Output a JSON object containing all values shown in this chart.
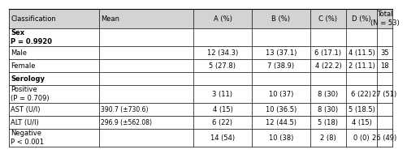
{
  "col_labels": [
    "Classification",
    "Mean",
    "A (%)",
    "B (%)",
    "C (%)",
    "D (%)",
    "Total\n(N = 53)"
  ],
  "rows": [
    {
      "label": "Sex\nP = 0.9920",
      "bold_label": true,
      "mean": "",
      "A": "",
      "B": "",
      "C": "",
      "D": "",
      "Total": "",
      "two_line": true
    },
    {
      "label": "Male",
      "bold_label": false,
      "mean": "",
      "A": "12 (34.3)",
      "B": "13 (37.1)",
      "C": "6 (17.1)",
      "D": "4 (11.5)",
      "Total": "35",
      "two_line": false
    },
    {
      "label": "Female",
      "bold_label": false,
      "mean": "",
      "A": "5 (27.8)",
      "B": "7 (38.9)",
      "C": "4 (22.2)",
      "D": "2 (11.1)",
      "Total": "18",
      "two_line": false
    },
    {
      "label": "Serology",
      "bold_label": true,
      "mean": "",
      "A": "",
      "B": "",
      "C": "",
      "D": "",
      "Total": "",
      "two_line": false
    },
    {
      "label": "Positive\n(P = 0.709)",
      "bold_label": false,
      "mean": "",
      "A": "3 (11)",
      "B": "10 (37)",
      "C": "8 (30)",
      "D": "6 (22)",
      "Total": "27 (51)",
      "two_line": true
    },
    {
      "label": "AST (U/l)",
      "bold_label": false,
      "mean": "390.7 (±730.6)",
      "A": "4 (15)",
      "B": "10 (36.5)",
      "C": "8 (30)",
      "D": "5 (18.5)",
      "Total": "",
      "two_line": false
    },
    {
      "label": "ALT (U/l)",
      "bold_label": false,
      "mean": "296.9 (±562.08)",
      "A": "6 (22)",
      "B": "12 (44.5)",
      "C": "5 (18)",
      "D": "4 (15)",
      "Total": "",
      "two_line": false
    },
    {
      "label": "Negative\nP < 0.001",
      "bold_label": false,
      "mean": "",
      "A": "14 (54)",
      "B": "10 (38)",
      "C": "2 (8)",
      "D": "0 (0)",
      "Total": "26 (49)",
      "two_line": true
    }
  ],
  "header_bg": "#d3d3d3",
  "bg_color": "#ffffff",
  "line_color": "#000000",
  "font_size": 6.0
}
